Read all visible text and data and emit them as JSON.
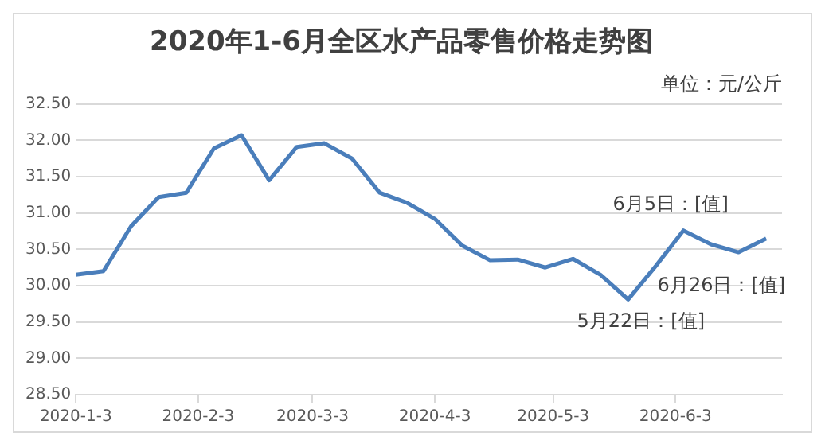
{
  "chart_data": {
    "type": "line",
    "title": "2020年1-6月全区水产品零售价格走势图",
    "annotations": [
      "单位：元/公斤",
      {
        "text": "6月5日：[值]",
        "x": "2020-06-05",
        "y": 30.76
      },
      {
        "text": "5月22日：[值]",
        "x": "2020-05-22",
        "y": 29.81
      },
      {
        "text": "6月26日：[值]",
        "x": "2020-06-26",
        "y": 30.65
      }
    ],
    "x": [
      "2020-01-03",
      "2020-01-10",
      "2020-01-17",
      "2020-01-24",
      "2020-01-31",
      "2020-02-07",
      "2020-02-14",
      "2020-02-21",
      "2020-02-28",
      "2020-03-06",
      "2020-03-13",
      "2020-03-20",
      "2020-03-27",
      "2020-04-03",
      "2020-04-10",
      "2020-04-17",
      "2020-04-24",
      "2020-05-01",
      "2020-05-08",
      "2020-05-15",
      "2020-05-22",
      "2020-05-29",
      "2020-06-05",
      "2020-06-12",
      "2020-06-19",
      "2020-06-26"
    ],
    "series": [
      {
        "color": "#4a7ebb",
        "values": [
          30.15,
          30.2,
          30.82,
          31.22,
          31.28,
          31.89,
          32.07,
          31.45,
          31.91,
          31.96,
          31.75,
          31.28,
          31.14,
          30.92,
          30.55,
          30.35,
          30.36,
          30.25,
          30.37,
          30.15,
          29.81,
          30.27,
          30.76,
          30.57,
          30.46,
          30.65
        ]
      }
    ],
    "xlim": [
      "2020-01-03",
      "2020-06-30"
    ],
    "xticks": [
      {
        "value": "2020-01-03",
        "label": "2020-1-3"
      },
      {
        "value": "2020-02-03",
        "label": "2020-2-3"
      },
      {
        "value": "2020-03-03",
        "label": "2020-3-3"
      },
      {
        "value": "2020-04-03",
        "label": "2020-4-3"
      },
      {
        "value": "2020-05-03",
        "label": "2020-5-3"
      },
      {
        "value": "2020-06-03",
        "label": "2020-6-3"
      }
    ],
    "ylim": [
      28.5,
      32.5
    ],
    "yticks": [
      {
        "value": 28.5,
        "label": "28.50"
      },
      {
        "value": 29,
        "label": "29.00"
      },
      {
        "value": 29.5,
        "label": "29.50"
      },
      {
        "value": 30,
        "label": "30.00"
      },
      {
        "value": 30.5,
        "label": "30.50"
      },
      {
        "value": 31,
        "label": "31.00"
      },
      {
        "value": 31.5,
        "label": "31.50"
      },
      {
        "value": 32,
        "label": "32.00"
      },
      {
        "value": 32.5,
        "label": "32.50"
      }
    ],
    "grid": "y",
    "legend": false,
    "marker": "none",
    "line_style": "solid"
  }
}
